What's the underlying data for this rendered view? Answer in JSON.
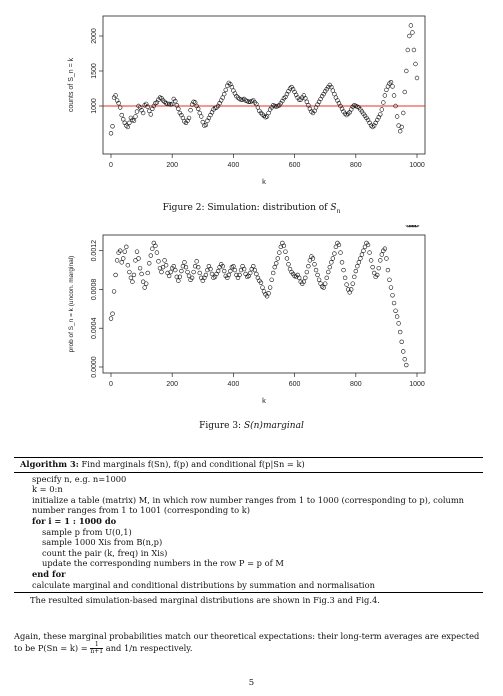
{
  "chart_data": [
    {
      "type": "scatter",
      "title": "",
      "xlabel": "k",
      "ylabel": "counts of S_n = k",
      "xlim": [
        0,
        1000
      ],
      "ylim": [
        400,
        2200
      ],
      "x_ticks": [
        "0",
        "200",
        "400",
        "600",
        "800",
        "1000"
      ],
      "y_ticks": [
        "1000",
        "1500",
        "2000"
      ],
      "reference_line": {
        "y": 1000,
        "color": "#e8302a"
      },
      "series": [
        {
          "points_x": [
            0,
            5,
            10,
            15,
            20,
            25,
            30,
            35,
            40,
            45,
            50,
            55,
            60,
            65,
            70,
            75,
            80,
            85,
            90,
            95,
            100,
            105,
            110,
            115,
            120,
            125,
            130,
            135,
            140,
            145,
            150,
            155,
            160,
            165,
            170,
            175,
            180,
            185,
            190,
            195,
            200,
            205,
            210,
            215,
            220,
            225,
            230,
            235,
            240,
            245,
            250,
            255,
            260,
            265,
            270,
            275,
            280,
            285,
            290,
            295,
            300,
            305,
            310,
            315,
            320,
            325,
            330,
            335,
            340,
            345,
            350,
            355,
            360,
            365,
            370,
            375,
            380,
            385,
            390,
            395,
            400,
            405,
            410,
            415,
            420,
            425,
            430,
            435,
            440,
            445,
            450,
            455,
            460,
            465,
            470,
            475,
            480,
            485,
            490,
            495,
            500,
            505,
            510,
            515,
            520,
            525,
            530,
            535,
            540,
            545,
            550,
            555,
            560,
            565,
            570,
            575,
            580,
            585,
            590,
            595,
            600,
            605,
            610,
            615,
            620,
            625,
            630,
            635,
            640,
            645,
            650,
            655,
            660,
            665,
            670,
            675,
            680,
            685,
            690,
            695,
            700,
            705,
            710,
            715,
            720,
            725,
            730,
            735,
            740,
            745,
            750,
            755,
            760,
            765,
            770,
            775,
            780,
            785,
            790,
            795,
            800,
            805,
            810,
            815,
            820,
            825,
            830,
            835,
            840,
            845,
            850,
            855,
            860,
            865,
            870,
            875,
            880,
            885,
            890,
            895,
            900,
            905,
            910,
            915,
            920,
            925,
            930,
            935,
            940,
            945,
            950,
            955,
            960,
            965,
            970,
            975,
            980,
            985,
            990,
            995,
            1000
          ],
          "points_y": [
            610,
            710,
            1120,
            1150,
            1080,
            1040,
            980,
            870,
            810,
            760,
            720,
            700,
            760,
            830,
            800,
            790,
            850,
            920,
            1000,
            980,
            940,
            900,
            1010,
            1030,
            990,
            930,
            880,
            960,
            1000,
            1040,
            1050,
            1090,
            1120,
            1110,
            1080,
            1060,
            1040,
            1030,
            1030,
            1020,
            1030,
            1100,
            1070,
            1010,
            960,
            900,
            870,
            830,
            780,
            760,
            790,
            830,
            940,
            1020,
            1060,
            1050,
            1000,
            960,
            900,
            850,
            770,
            720,
            730,
            790,
            830,
            870,
            910,
            950,
            970,
            980,
            1000,
            1040,
            1080,
            1120,
            1170,
            1230,
            1290,
            1330,
            1310,
            1270,
            1220,
            1180,
            1140,
            1120,
            1100,
            1090,
            1090,
            1100,
            1080,
            1070,
            1060,
            1060,
            1070,
            1080,
            1050,
            1030,
            980,
            930,
            900,
            880,
            860,
            840,
            850,
            900,
            950,
            980,
            1010,
            1000,
            990,
            1000,
            1010,
            1040,
            1070,
            1110,
            1130,
            1170,
            1210,
            1250,
            1270,
            1240,
            1200,
            1160,
            1120,
            1090,
            1090,
            1120,
            1150,
            1110,
            1060,
            1010,
            960,
            920,
            900,
            930,
            980,
            1020,
            1060,
            1100,
            1140,
            1170,
            1210,
            1240,
            1270,
            1300,
            1270,
            1220,
            1170,
            1120,
            1080,
            1040,
            1000,
            960,
            920,
            890,
            870,
            890,
            910,
            950,
            990,
            1010,
            1000,
            990,
            980,
            950,
            920,
            890,
            860,
            830,
            800,
            760,
            720,
            700,
            720,
            760,
            800,
            840,
            880,
            950,
            1050,
            1150,
            1230,
            1280,
            1320,
            1340,
            1280,
            1150,
            1000,
            850,
            720,
            640,
            700,
            900,
            1200,
            1500,
            1800,
            2000,
            2150,
            2050,
            1800,
            1600,
            1400,
            1200,
            1000,
            800,
            650
          ],
          "color": "#111111"
        }
      ]
    },
    {
      "type": "scatter",
      "title": "",
      "xlabel": "k",
      "ylabel": "prob of S_n = k (uncon. marginal)",
      "xlim": [
        0,
        1000
      ],
      "ylim": [
        0,
        0.0013
      ],
      "x_ticks": [
        "0",
        "200",
        "400",
        "600",
        "800",
        "1000"
      ],
      "y_ticks": [
        "0.0000",
        "0.0004",
        "0.0008",
        "0.0012"
      ],
      "series": [
        {
          "points_x": [
            0,
            5,
            10,
            15,
            20,
            25,
            30,
            35,
            40,
            45,
            50,
            55,
            60,
            65,
            70,
            75,
            80,
            85,
            90,
            95,
            100,
            105,
            110,
            115,
            120,
            125,
            130,
            135,
            140,
            145,
            150,
            155,
            160,
            165,
            170,
            175,
            180,
            185,
            190,
            195,
            200,
            205,
            210,
            215,
            220,
            225,
            230,
            235,
            240,
            245,
            250,
            255,
            260,
            265,
            270,
            275,
            280,
            285,
            290,
            295,
            300,
            305,
            310,
            315,
            320,
            325,
            330,
            335,
            340,
            345,
            350,
            355,
            360,
            365,
            370,
            375,
            380,
            385,
            390,
            395,
            400,
            405,
            410,
            415,
            420,
            425,
            430,
            435,
            440,
            445,
            450,
            455,
            460,
            465,
            470,
            475,
            480,
            485,
            490,
            495,
            500,
            505,
            510,
            515,
            520,
            525,
            530,
            535,
            540,
            545,
            550,
            555,
            560,
            565,
            570,
            575,
            580,
            585,
            590,
            595,
            600,
            605,
            610,
            615,
            620,
            625,
            630,
            635,
            640,
            645,
            650,
            655,
            660,
            665,
            670,
            675,
            680,
            685,
            690,
            695,
            700,
            705,
            710,
            715,
            720,
            725,
            730,
            735,
            740,
            745,
            750,
            755,
            760,
            765,
            770,
            775,
            780,
            785,
            790,
            795,
            800,
            805,
            810,
            815,
            820,
            825,
            830,
            835,
            840,
            845,
            850,
            855,
            860,
            865,
            870,
            875,
            880,
            885,
            890,
            895,
            900,
            905,
            910,
            915,
            920,
            925,
            930,
            935,
            940,
            945,
            950,
            955,
            960,
            965,
            970,
            975,
            980,
            985,
            990,
            995,
            1000
          ],
          "points_y": [
            0.0005,
            0.00055,
            0.00078,
            0.00095,
            0.0011,
            0.00118,
            0.0012,
            0.00108,
            0.00112,
            0.00119,
            0.00124,
            0.00105,
            0.00098,
            0.00092,
            0.00088,
            0.00095,
            0.0011,
            0.00119,
            0.00112,
            0.00102,
            0.00096,
            0.00088,
            0.00082,
            0.00086,
            0.00097,
            0.00107,
            0.00115,
            0.00122,
            0.00128,
            0.00125,
            0.00118,
            0.00109,
            0.00102,
            0.00098,
            0.00103,
            0.0011,
            0.00105,
            0.00097,
            0.00094,
            0.00098,
            0.00102,
            0.00104,
            0.001,
            0.00093,
            0.00089,
            0.00093,
            0.00099,
            0.00104,
            0.00108,
            0.00103,
            0.00098,
            0.00094,
            0.0009,
            0.00092,
            0.00098,
            0.00104,
            0.00109,
            0.00103,
            0.00097,
            0.00092,
            0.00089,
            0.00092,
            0.00095,
            0.001,
            0.00104,
            0.00101,
            0.00096,
            0.00092,
            0.00093,
            0.00096,
            0.00099,
            0.00103,
            0.00106,
            0.00104,
            0.00099,
            0.00094,
            0.00092,
            0.00095,
            0.00099,
            0.00103,
            0.00104,
            0.001,
            0.00095,
            0.00092,
            0.00095,
            0.001,
            0.00104,
            0.00101,
            0.00096,
            0.00093,
            0.00094,
            0.00097,
            0.00101,
            0.00104,
            0.001,
            0.00096,
            0.00092,
            0.00089,
            0.00087,
            0.00082,
            0.00078,
            0.00075,
            0.00073,
            0.00076,
            0.00082,
            0.0009,
            0.00097,
            0.00103,
            0.00107,
            0.00112,
            0.00118,
            0.00124,
            0.00128,
            0.00125,
            0.00119,
            0.00112,
            0.00106,
            0.00101,
            0.00098,
            0.00096,
            0.00094,
            0.00093,
            0.00095,
            0.00092,
            0.00088,
            0.00086,
            0.00088,
            0.00092,
            0.00098,
            0.00104,
            0.0011,
            0.00114,
            0.00112,
            0.00106,
            0.001,
            0.00095,
            0.0009,
            0.00086,
            0.00083,
            0.00082,
            0.00086,
            0.00092,
            0.00098,
            0.00103,
            0.00108,
            0.00112,
            0.00117,
            0.00124,
            0.00128,
            0.00126,
            0.00118,
            0.00108,
            0.001,
            0.00092,
            0.00085,
            0.0008,
            0.00077,
            0.0008,
            0.00086,
            0.00093,
            0.00099,
            0.00104,
            0.00108,
            0.00112,
            0.00116,
            0.0012,
            0.00124,
            0.00128,
            0.00126,
            0.00118,
            0.0011,
            0.00103,
            0.00097,
            0.00093,
            0.00095,
            0.00102,
            0.0011,
            0.00116,
            0.0012,
            0.00122,
            0.00112,
            0.001,
            0.0009,
            0.00082,
            0.00074,
            0.00066,
            0.00058,
            0.00052,
            0.00045,
            0.00036,
            0.00026,
            0.00016,
            8e-05,
            2e-05
          ],
          "color": "#111111"
        }
      ]
    }
  ],
  "captions": {
    "fig2_prefix": "Figure 2: Simulation: distribution of ",
    "fig2_math": "S",
    "fig2_sub": "n",
    "fig3_prefix": "Figure 3: ",
    "fig3_math": "S(n)marginal"
  },
  "algorithm": {
    "title_label": "Algorithm 3:",
    "title_text": "Find marginals f(Sn), f(p) and conditional f(p|Sn = k)",
    "lines": [
      "specify n, e.g. n=1000",
      "k = 0:n",
      "initialize a table (matrix) M, in which row number ranges from 1 to 1000 (corresponding to p), column number ranges from 1 to 1001 (corresponding to k)",
      "for i = 1 : 1000 do",
      "sample p from U(0,1)",
      "sample 1000 Xis from B(n,p)",
      "count the pair (k, freq) in Xis)",
      "update the corresponding numbers in the row P = p of M",
      "end for",
      "calculate marginal and conditional distributions by summation and normalisation"
    ],
    "footer": "The resulted simulation-based marginal distributions are shown in Fig.3 and Fig.4."
  },
  "paragraph": {
    "text_a": "Again, these marginal probabilities match our theoretical expectations: their long-term averages are expected to be P(Sn = k) = ",
    "frac_num": "1",
    "frac_den": "n+1",
    "text_b": " and 1/n respectively."
  },
  "page_number": "5"
}
